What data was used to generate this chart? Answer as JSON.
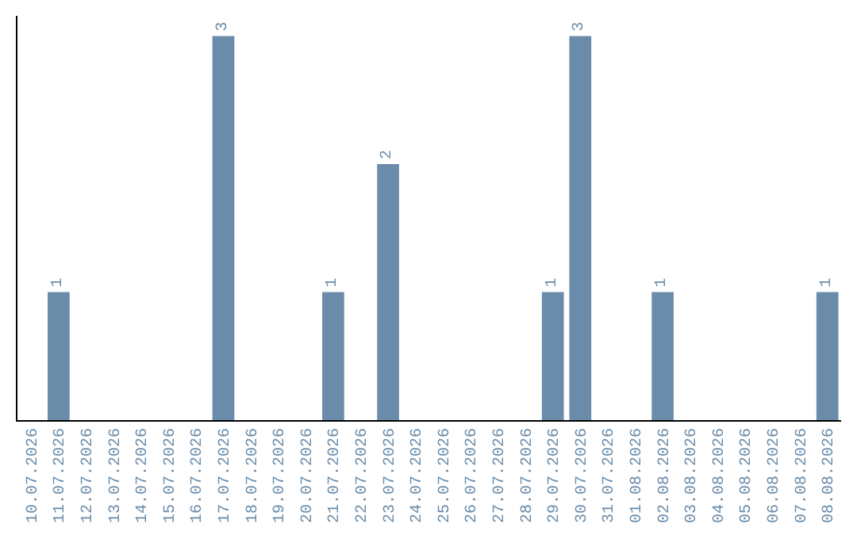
{
  "chart_data": {
    "type": "bar",
    "categories": [
      "10.07.2026",
      "11.07.2026",
      "12.07.2026",
      "13.07.2026",
      "14.07.2026",
      "15.07.2026",
      "16.07.2026",
      "17.07.2026",
      "18.07.2026",
      "19.07.2026",
      "20.07.2026",
      "21.07.2026",
      "22.07.2026",
      "23.07.2026",
      "24.07.2026",
      "25.07.2026",
      "26.07.2026",
      "27.07.2026",
      "28.07.2026",
      "29.07.2026",
      "30.07.2026",
      "31.07.2026",
      "01.08.2026",
      "02.08.2026",
      "03.08.2026",
      "04.08.2026",
      "05.08.2026",
      "06.08.2026",
      "07.08.2026",
      "08.08.2026"
    ],
    "values": [
      0,
      1,
      0,
      0,
      0,
      0,
      0,
      3,
      0,
      0,
      0,
      1,
      0,
      2,
      0,
      0,
      0,
      0,
      0,
      1,
      3,
      0,
      0,
      1,
      0,
      0,
      0,
      0,
      0,
      1
    ],
    "value_labels": [
      null,
      "1",
      null,
      null,
      null,
      null,
      null,
      "3",
      null,
      null,
      null,
      "1",
      null,
      "2",
      null,
      null,
      null,
      null,
      null,
      "1",
      "3",
      null,
      null,
      "1",
      null,
      null,
      null,
      null,
      null,
      "1"
    ],
    "color": "#6a8caa",
    "tick_labels": "x"
  }
}
